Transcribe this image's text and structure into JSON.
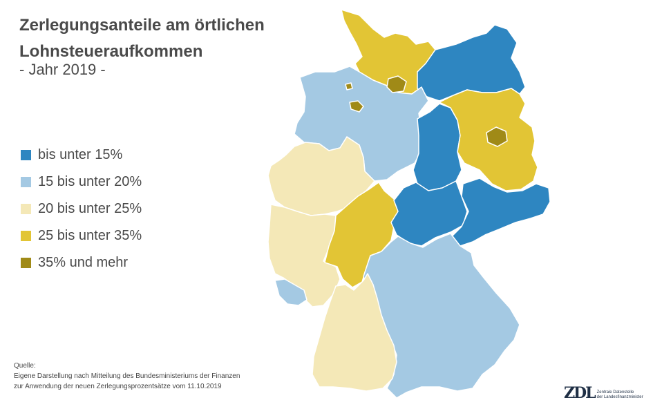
{
  "title_line1": "Zerlegungsanteile am örtlichen",
  "title_line2": "Lohnsteueraufkommen",
  "subtitle": "- Jahr 2019 -",
  "legend": [
    {
      "label": "bis unter 15%",
      "color": "#2e86c1"
    },
    {
      "label": "15 bis unter 20%",
      "color": "#a4c9e3"
    },
    {
      "label": "20 bis unter 25%",
      "color": "#f4e8b7"
    },
    {
      "label": "25 bis unter 35%",
      "color": "#e2c535"
    },
    {
      "label": "35% und mehr",
      "color": "#a08a17"
    }
  ],
  "source": {
    "heading": "Quelle:",
    "line1": "Eigene Darstellung nach Mitteilung des Bundesministeriums der Finanzen",
    "line2": "zur Anwendung der neuen Zerlegungsprozentsätze vom 11.10.2019"
  },
  "logo": {
    "mark": "ZDL",
    "line1": "Zentrale Datenstelle",
    "line2": "der Landesfinanzminister"
  },
  "map": {
    "colors": {
      "band_1": "#2e86c1",
      "band_2": "#a4c9e3",
      "band_3": "#f4e8b7",
      "band_4": "#e2c535",
      "band_5": "#a08a17"
    }
  }
}
